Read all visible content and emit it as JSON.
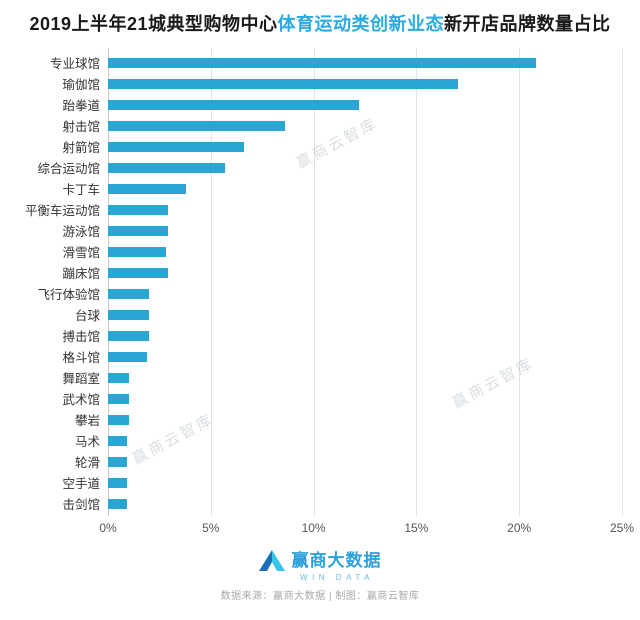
{
  "title": {
    "part1": "2019上半年21城典型购物中心",
    "highlight": "体育运动类创新业态",
    "part2": "新开店品牌数量占比"
  },
  "colors": {
    "accent": "#29A6D4",
    "title_highlight": "#29ABE2"
  },
  "chart_data": {
    "type": "bar",
    "orientation": "horizontal",
    "title": "2019上半年21城典型购物中心体育运动类创新业态新开店品牌数量占比",
    "categories": [
      "专业球馆",
      "瑜伽馆",
      "跆拳道",
      "射击馆",
      "射箭馆",
      "综合运动馆",
      "卡丁车",
      "平衡车运动馆",
      "游泳馆",
      "滑雪馆",
      "蹦床馆",
      "飞行体验馆",
      "台球",
      "搏击馆",
      "格斗馆",
      "舞蹈室",
      "武术馆",
      "攀岩",
      "马术",
      "轮滑",
      "空手道",
      "击剑馆"
    ],
    "values": [
      20.8,
      17.0,
      12.2,
      8.6,
      6.6,
      5.7,
      3.8,
      2.9,
      2.9,
      2.8,
      2.9,
      2.0,
      2.0,
      2.0,
      1.9,
      1.0,
      1.0,
      1.0,
      0.9,
      0.9,
      0.9,
      0.9
    ],
    "xlim": [
      0,
      25
    ],
    "x_ticks": [
      "0%",
      "5%",
      "10%",
      "15%",
      "20%",
      "25%"
    ],
    "bar_color": "#29A6D4",
    "grid": true,
    "legend": "none",
    "ylabel": "",
    "xlabel": ""
  },
  "watermark": {
    "text": "赢商云智库"
  },
  "footer": {
    "logo_text": "赢商大数据",
    "logo_subtext": "WIN DATA",
    "source_text": "数据来源：赢商大数据 | 制图：赢商云智库"
  }
}
